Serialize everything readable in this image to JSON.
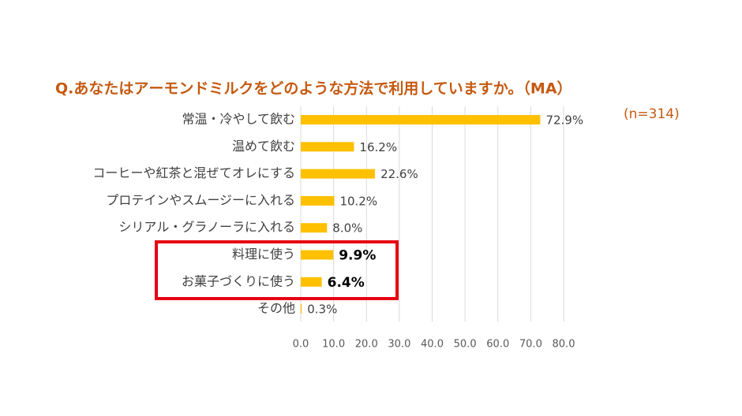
{
  "chart_data": {
    "type": "bar",
    "orientation": "horizontal",
    "title": "Q.あなたはアーモンドミルクをどのような方法で利用していますか。（MA）",
    "subtitle": "(n=314)",
    "categories": [
      "常温・冷やして飲む",
      "温めて飲む",
      "コーヒーや紅茶と混ぜてオレにする",
      "プロテインやスムージーに入れる",
      "シリアル・グラノーラに入れる",
      "料理に使う",
      "お菓子づくりに使う",
      "その他"
    ],
    "values": [
      72.9,
      16.2,
      22.6,
      10.2,
      8.0,
      9.9,
      6.4,
      0.3
    ],
    "value_labels": [
      "72.9%",
      "16.2%",
      "22.6%",
      "10.2%",
      "8.0%",
      "9.9%",
      "6.4%",
      "0.3%"
    ],
    "color": "#ffc000",
    "xlim": [
      0,
      80
    ],
    "xticks": [
      {
        "value": 0,
        "label": "0.0"
      },
      {
        "value": 10,
        "label": "10.0"
      },
      {
        "value": 20,
        "label": "20.0"
      },
      {
        "value": 30,
        "label": "30.0"
      },
      {
        "value": 40,
        "label": "40.0"
      },
      {
        "value": 50,
        "label": "50.0"
      },
      {
        "value": 60,
        "label": "60.0"
      },
      {
        "value": 70,
        "label": "70.0"
      },
      {
        "value": 80,
        "label": "80.0"
      }
    ],
    "grid": true
  }
}
